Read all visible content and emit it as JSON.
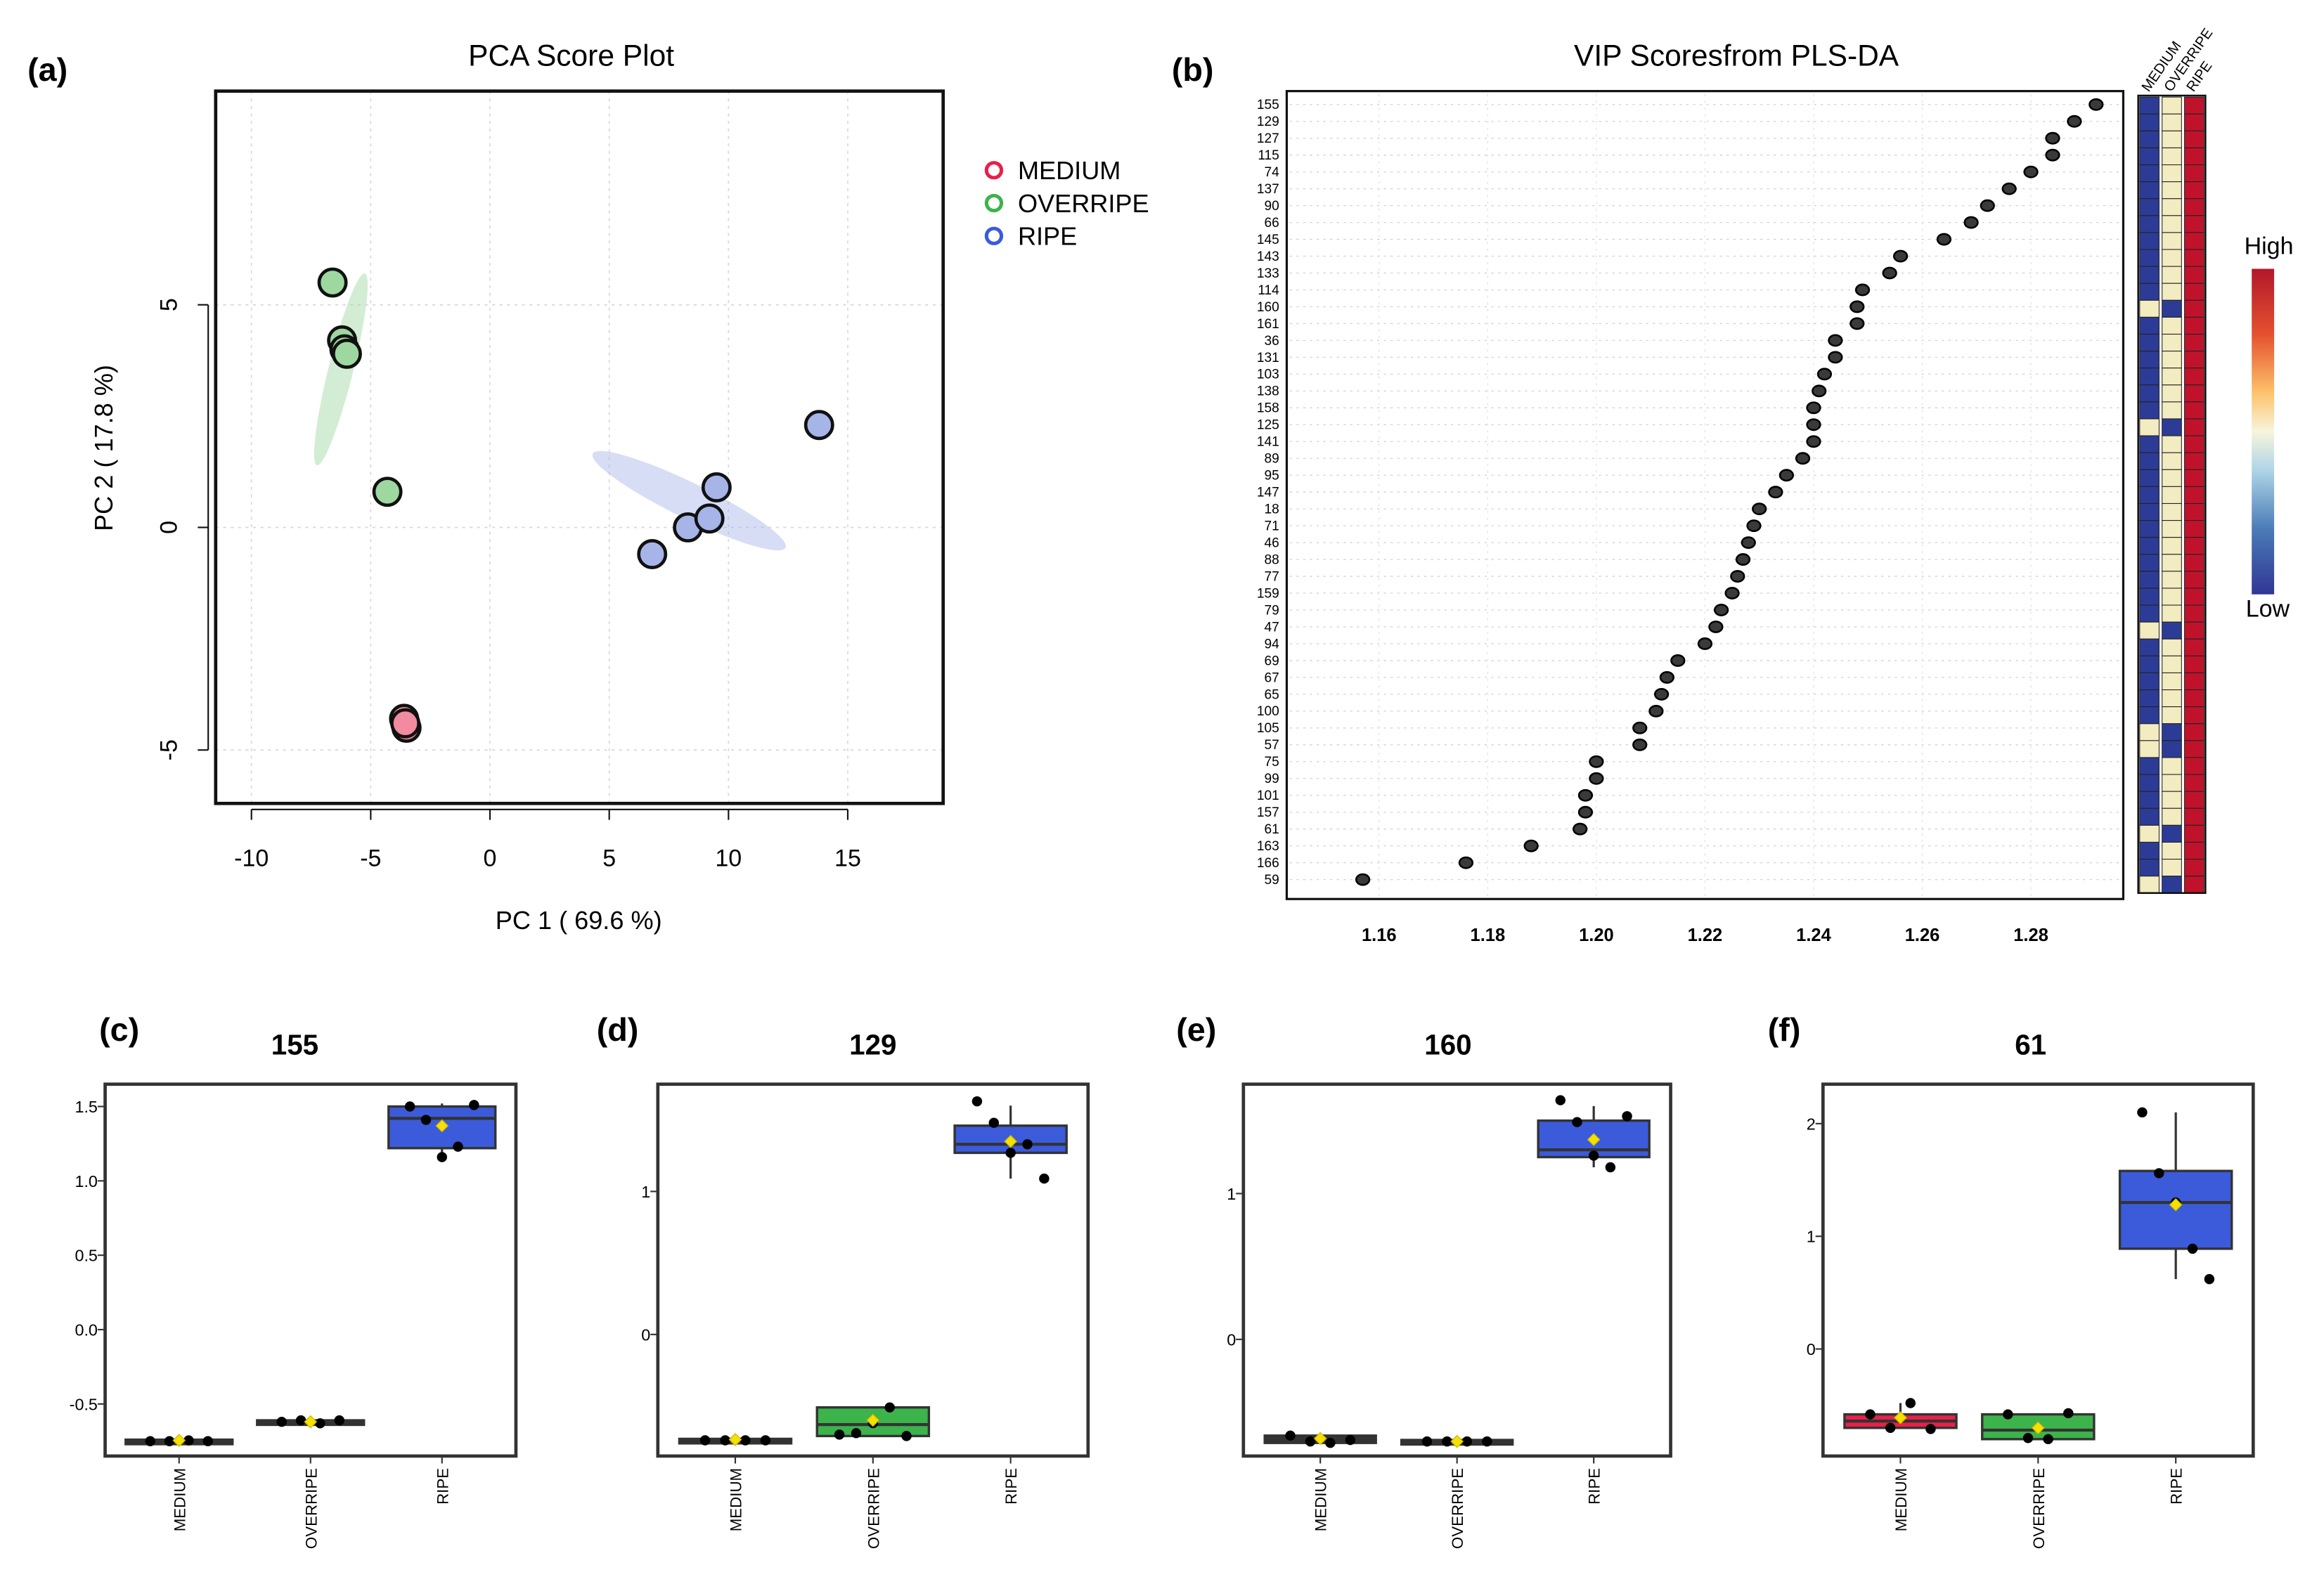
{
  "chart_data": [
    {
      "panel": "(a)",
      "type": "scatter",
      "title": "PCA Score Plot",
      "xlabel": "PC 1 ( 69.6 %)",
      "ylabel": "PC 2 ( 17.8 %)",
      "xlim": [
        -11.5,
        19
      ],
      "ylim": [
        -6.2,
        9.8
      ],
      "xticks": [
        -10,
        -5,
        0,
        5,
        10,
        15
      ],
      "xtick_labels": [
        "-10",
        "-5",
        "0",
        "5",
        "10",
        "15"
      ],
      "yticks": [
        -5,
        0,
        5
      ],
      "ytick_labels": [
        "-5",
        "0",
        "5"
      ],
      "grid": true,
      "legend": "top-right",
      "series": [
        {
          "name": "MEDIUM",
          "color": "#e8204a",
          "fill": "#f28aa0",
          "x": [
            -3.6,
            -3.5,
            -3.55
          ],
          "y": [
            -4.3,
            -4.5,
            -4.4
          ],
          "ellipse": {
            "cx": -3.55,
            "cy": -4.4,
            "rx": 0.3,
            "ry": 0.2,
            "angle": 0
          }
        },
        {
          "name": "OVERRIPE",
          "color": "#3cb44b",
          "fill": "#9ed8a0",
          "x": [
            -6.6,
            -6.2,
            -6.1,
            -6.0,
            -4.3
          ],
          "y": [
            5.5,
            4.2,
            4.0,
            3.9,
            0.8
          ],
          "ellipse": {
            "cx": -6.25,
            "cy": 3.55,
            "rx": 8.3,
            "ry": 0.52,
            "angle": -76
          }
        },
        {
          "name": "RIPE",
          "color": "#3b5bdb",
          "fill": "#a7b4e8",
          "x": [
            6.8,
            8.3,
            9.2,
            9.5,
            13.8
          ],
          "y": [
            -0.6,
            0.0,
            0.2,
            0.9,
            2.3
          ],
          "ellipse": {
            "cx": 8.35,
            "cy": 0.6,
            "rx": 9.0,
            "ry": 0.75,
            "angle": 26
          }
        }
      ]
    },
    {
      "panel": "(b)",
      "type": "scatter",
      "title": "VIP Scoresfrom PLS-DA",
      "xlim": [
        1.143,
        1.297
      ],
      "xticks": [
        1.16,
        1.18,
        1.2,
        1.22,
        1.24,
        1.26,
        1.28
      ],
      "xtick_labels": [
        "1.16",
        "1.18",
        "1.20",
        "1.22",
        "1.24",
        "1.26",
        "1.28"
      ],
      "features": [
        "155",
        "129",
        "127",
        "115",
        "74",
        "137",
        "90",
        "66",
        "145",
        "143",
        "133",
        "114",
        "160",
        "161",
        "36",
        "131",
        "103",
        "138",
        "158",
        "125",
        "141",
        "89",
        "95",
        "147",
        "18",
        "71",
        "46",
        "88",
        "77",
        "159",
        "79",
        "47",
        "94",
        "69",
        "67",
        "65",
        "100",
        "105",
        "57",
        "75",
        "99",
        "101",
        "157",
        "61",
        "163",
        "166",
        "59"
      ],
      "values": [
        1.292,
        1.288,
        1.284,
        1.284,
        1.28,
        1.276,
        1.272,
        1.269,
        1.264,
        1.256,
        1.254,
        1.249,
        1.248,
        1.248,
        1.244,
        1.244,
        1.242,
        1.241,
        1.24,
        1.24,
        1.24,
        1.238,
        1.235,
        1.233,
        1.23,
        1.229,
        1.228,
        1.227,
        1.226,
        1.225,
        1.223,
        1.222,
        1.22,
        1.215,
        1.213,
        1.212,
        1.211,
        1.208,
        1.208,
        1.2,
        1.2,
        1.198,
        1.198,
        1.197,
        1.188,
        1.176,
        1.157
      ],
      "heatmap_columns": [
        "MEDIUM",
        "OVERRIPE",
        "RIPE"
      ],
      "heatmap_colors": {
        "low": "#2c3c96",
        "mid": "#f3ecc0",
        "high": "#c0132b"
      },
      "heatmap_levels": [
        [
          "low",
          "mid",
          "high"
        ],
        [
          "low",
          "mid",
          "high"
        ],
        [
          "low",
          "mid",
          "high"
        ],
        [
          "low",
          "mid",
          "high"
        ],
        [
          "low",
          "mid",
          "high"
        ],
        [
          "low",
          "mid",
          "high"
        ],
        [
          "low",
          "mid",
          "high"
        ],
        [
          "low",
          "mid",
          "high"
        ],
        [
          "low",
          "mid",
          "high"
        ],
        [
          "low",
          "mid",
          "high"
        ],
        [
          "low",
          "mid",
          "high"
        ],
        [
          "low",
          "mid",
          "high"
        ],
        [
          "mid",
          "low",
          "high"
        ],
        [
          "low",
          "mid",
          "high"
        ],
        [
          "low",
          "mid",
          "high"
        ],
        [
          "low",
          "mid",
          "high"
        ],
        [
          "low",
          "mid",
          "high"
        ],
        [
          "low",
          "mid",
          "high"
        ],
        [
          "low",
          "mid",
          "high"
        ],
        [
          "mid",
          "low",
          "high"
        ],
        [
          "low",
          "mid",
          "high"
        ],
        [
          "low",
          "mid",
          "high"
        ],
        [
          "low",
          "mid",
          "high"
        ],
        [
          "low",
          "mid",
          "high"
        ],
        [
          "low",
          "mid",
          "high"
        ],
        [
          "low",
          "mid",
          "high"
        ],
        [
          "low",
          "mid",
          "high"
        ],
        [
          "low",
          "mid",
          "high"
        ],
        [
          "low",
          "mid",
          "high"
        ],
        [
          "low",
          "mid",
          "high"
        ],
        [
          "low",
          "mid",
          "high"
        ],
        [
          "mid",
          "low",
          "high"
        ],
        [
          "low",
          "mid",
          "high"
        ],
        [
          "low",
          "mid",
          "high"
        ],
        [
          "low",
          "mid",
          "high"
        ],
        [
          "low",
          "mid",
          "high"
        ],
        [
          "low",
          "mid",
          "high"
        ],
        [
          "mid",
          "low",
          "high"
        ],
        [
          "mid",
          "low",
          "high"
        ],
        [
          "low",
          "mid",
          "high"
        ],
        [
          "low",
          "mid",
          "high"
        ],
        [
          "low",
          "mid",
          "high"
        ],
        [
          "low",
          "mid",
          "high"
        ],
        [
          "mid",
          "low",
          "high"
        ],
        [
          "low",
          "mid",
          "high"
        ],
        [
          "low",
          "mid",
          "high"
        ],
        [
          "mid",
          "low",
          "high"
        ]
      ],
      "colorbar": {
        "high_label": "High",
        "low_label": "Low"
      }
    },
    {
      "panel": "(c)",
      "type": "box",
      "title": "155",
      "categories": [
        "MEDIUM",
        "OVERRIPE",
        "RIPE"
      ],
      "ylim": [
        -0.85,
        1.65
      ],
      "yticks": [
        -0.5,
        0.0,
        0.5,
        1.0,
        1.5
      ],
      "ytick_labels": [
        "-0.5",
        "0.0",
        "0.5",
        "1.0",
        "1.5"
      ],
      "boxes": [
        {
          "q1": -0.75,
          "median": -0.75,
          "q3": -0.74,
          "whisker_low": -0.75,
          "whisker_high": -0.74,
          "mean": -0.745,
          "points": [
            -0.75,
            -0.75,
            -0.745,
            -0.75
          ],
          "fill": "#333333"
        },
        {
          "q1": -0.63,
          "median": -0.62,
          "q3": -0.61,
          "whisker_low": -0.63,
          "whisker_high": -0.61,
          "mean": -0.62,
          "points": [
            -0.62,
            -0.61,
            -0.63,
            -0.61
          ],
          "fill": "#333333"
        },
        {
          "q1": 1.22,
          "median": 1.42,
          "q3": 1.5,
          "whisker_low": 1.16,
          "whisker_high": 1.52,
          "mean": 1.37,
          "points": [
            1.5,
            1.41,
            1.16,
            1.23,
            1.51
          ],
          "fill": "#3b5bdb"
        }
      ]
    },
    {
      "panel": "(d)",
      "type": "box",
      "title": "129",
      "categories": [
        "MEDIUM",
        "OVERRIPE",
        "RIPE"
      ],
      "ylim": [
        -0.85,
        1.75
      ],
      "yticks": [
        0,
        1
      ],
      "ytick_labels": [
        "0",
        "1"
      ],
      "boxes": [
        {
          "q1": -0.74,
          "median": -0.74,
          "q3": -0.73,
          "whisker_low": -0.74,
          "whisker_high": -0.73,
          "mean": -0.735,
          "points": [
            -0.74,
            -0.74,
            -0.74,
            -0.74
          ],
          "fill": "#333333"
        },
        {
          "q1": -0.71,
          "median": -0.63,
          "q3": -0.51,
          "whisker_low": -0.71,
          "whisker_high": -0.51,
          "mean": -0.6,
          "points": [
            -0.7,
            -0.69,
            -0.62,
            -0.51,
            -0.71
          ],
          "fill": "#3cb44b"
        },
        {
          "q1": 1.27,
          "median": 1.33,
          "q3": 1.46,
          "whisker_low": 1.09,
          "whisker_high": 1.6,
          "mean": 1.35,
          "points": [
            1.63,
            1.48,
            1.27,
            1.33,
            1.09
          ],
          "fill": "#3b5bdb"
        }
      ]
    },
    {
      "panel": "(e)",
      "type": "box",
      "title": "160",
      "categories": [
        "MEDIUM",
        "OVERRIPE",
        "RIPE"
      ],
      "ylim": [
        -0.8,
        1.75
      ],
      "yticks": [
        0,
        1
      ],
      "ytick_labels": [
        "0",
        "1"
      ],
      "boxes": [
        {
          "q1": -0.71,
          "median": -0.68,
          "q3": -0.66,
          "whisker_low": -0.71,
          "whisker_high": -0.66,
          "mean": -0.68,
          "points": [
            -0.66,
            -0.7,
            -0.71,
            -0.69
          ],
          "fill": "#333333"
        },
        {
          "q1": -0.71,
          "median": -0.7,
          "q3": -0.69,
          "whisker_low": -0.71,
          "whisker_high": -0.69,
          "mean": -0.7,
          "points": [
            -0.7,
            -0.7,
            -0.7,
            -0.7
          ],
          "fill": "#333333"
        },
        {
          "q1": 1.25,
          "median": 1.3,
          "q3": 1.5,
          "whisker_low": 1.18,
          "whisker_high": 1.6,
          "mean": 1.37,
          "points": [
            1.64,
            1.49,
            1.26,
            1.18,
            1.53
          ],
          "fill": "#3b5bdb"
        }
      ]
    },
    {
      "panel": "(f)",
      "type": "box",
      "title": "61",
      "categories": [
        "MEDIUM",
        "OVERRIPE",
        "RIPE"
      ],
      "ylim": [
        -0.95,
        2.35
      ],
      "yticks": [
        0,
        1,
        2
      ],
      "ytick_labels": [
        "0",
        "1",
        "2"
      ],
      "boxes": [
        {
          "q1": -0.7,
          "median": -0.64,
          "q3": -0.58,
          "whisker_low": -0.7,
          "whisker_high": -0.48,
          "mean": -0.61,
          "points": [
            -0.58,
            -0.7,
            -0.48,
            -0.71
          ],
          "fill": "#e8204a"
        },
        {
          "q1": -0.8,
          "median": -0.72,
          "q3": -0.58,
          "whisker_low": -0.8,
          "whisker_high": -0.58,
          "mean": -0.7,
          "points": [
            -0.58,
            -0.79,
            -0.8,
            -0.57
          ],
          "fill": "#3cb44b"
        },
        {
          "q1": 0.89,
          "median": 1.3,
          "q3": 1.58,
          "whisker_low": 0.62,
          "whisker_high": 2.1,
          "mean": 1.28,
          "points": [
            2.1,
            1.56,
            1.3,
            0.89,
            0.62
          ],
          "fill": "#3b5bdb"
        }
      ]
    }
  ]
}
